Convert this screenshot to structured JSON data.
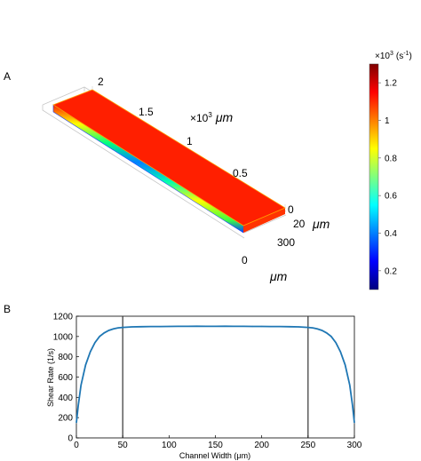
{
  "panels": {
    "a": "A",
    "b": "B"
  },
  "panel_a": {
    "length_axis": {
      "ticks": [
        "2",
        "1.5",
        "1",
        "0.5",
        "0"
      ],
      "multiplier": "×10",
      "exponent": "3",
      "unit": "μm"
    },
    "height_axis": {
      "tick": "20",
      "unit": "μm"
    },
    "width_axis": {
      "ticks": [
        "300",
        "0"
      ],
      "unit": "μm"
    },
    "colorbar": {
      "multiplier": "×10",
      "exponent": "3",
      "unit_open": "(s",
      "unit_exponent": "-1",
      "unit_close": ")",
      "ticks": [
        "1.2",
        "1",
        "0.8",
        "0.6",
        "0.4",
        "0.2"
      ],
      "range": [
        0.1,
        1.3
      ],
      "colors": [
        "#00007f",
        "#0000ff",
        "#007fff",
        "#00ffff",
        "#7fff7f",
        "#ffff00",
        "#ff7f00",
        "#ff0000",
        "#7f0000"
      ]
    }
  },
  "chart_data": {
    "type": "line",
    "xlabel": "Channel Width (μm)",
    "ylabel": "Shear Rate (1/s)",
    "xlim": [
      0,
      300
    ],
    "ylim": [
      0,
      1200
    ],
    "x_ticks": [
      "0",
      "50",
      "100",
      "150",
      "200",
      "250",
      "300"
    ],
    "y_ticks": [
      "0",
      "200",
      "400",
      "600",
      "800",
      "1000",
      "1200"
    ],
    "vertical_lines": [
      50,
      250
    ],
    "line_color": "#1f77b4",
    "series": [
      {
        "x": [
          0,
          2,
          5,
          10,
          15,
          20,
          25,
          30,
          35,
          40,
          45,
          50,
          60,
          70,
          80,
          90,
          100,
          110,
          120,
          130,
          140,
          150,
          160,
          170,
          180,
          190,
          200,
          210,
          220,
          230,
          240,
          250,
          255,
          260,
          265,
          270,
          275,
          280,
          285,
          290,
          295,
          298,
          300
        ],
        "y": [
          150,
          320,
          520,
          720,
          850,
          940,
          1000,
          1035,
          1060,
          1075,
          1085,
          1090,
          1095,
          1097,
          1098,
          1098,
          1099,
          1100,
          1100,
          1101,
          1100,
          1100,
          1101,
          1100,
          1100,
          1099,
          1099,
          1098,
          1098,
          1097,
          1095,
          1090,
          1085,
          1075,
          1060,
          1035,
          1000,
          940,
          850,
          720,
          520,
          320,
          150
        ]
      }
    ]
  }
}
